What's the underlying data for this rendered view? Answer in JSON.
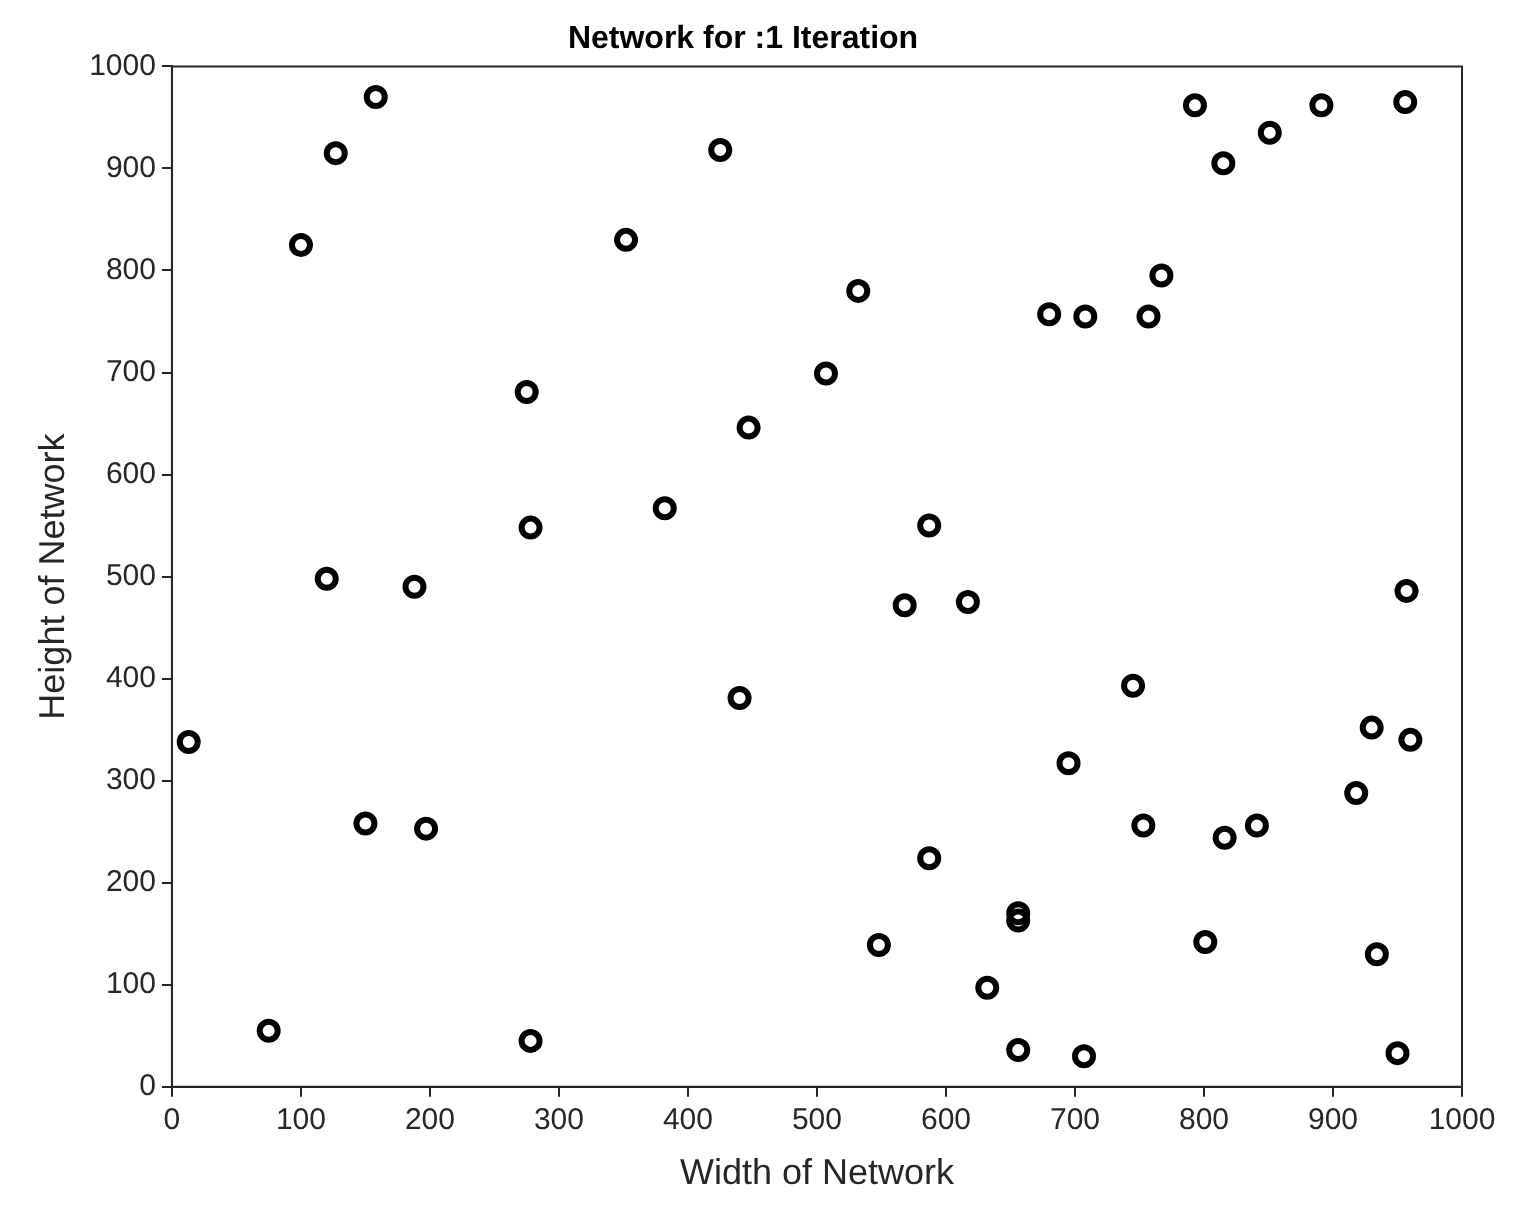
{
  "chart_data": {
    "type": "scatter",
    "title": "Network for :1 Iteration",
    "xlabel": "Width of Network",
    "ylabel": "Height of Network",
    "xlim": [
      0,
      1000
    ],
    "xticks": [
      0,
      100,
      200,
      300,
      400,
      500,
      600,
      700,
      800,
      900,
      1000
    ],
    "ylim": [
      0,
      1000
    ],
    "yticks": [
      0,
      100,
      200,
      300,
      400,
      500,
      600,
      700,
      800,
      900,
      1000
    ],
    "grid": false,
    "legend": false,
    "marker": "circle",
    "series": [
      {
        "color": "#000000",
        "x": [
          13,
          75,
          100,
          120,
          127,
          150,
          158,
          188,
          197,
          275,
          278,
          278,
          352,
          382,
          425,
          440,
          447,
          507,
          532,
          548,
          568,
          587,
          587,
          617,
          632,
          656,
          656,
          656,
          680,
          695,
          707,
          708,
          745,
          753,
          757,
          767,
          793,
          801,
          815,
          816,
          841,
          851,
          891,
          918,
          930,
          934,
          950,
          956,
          957,
          960
        ],
        "values": [
          338,
          55,
          825,
          498,
          915,
          258,
          970,
          490,
          253,
          681,
          548,
          45,
          830,
          567,
          918,
          381,
          646,
          699,
          780,
          139,
          472,
          550,
          224,
          475,
          97,
          170,
          163,
          36,
          757,
          317,
          30,
          755,
          393,
          256,
          755,
          795,
          962,
          142,
          905,
          244,
          256,
          935,
          962,
          288,
          352,
          130,
          33,
          965,
          486,
          340
        ]
      }
    ]
  }
}
